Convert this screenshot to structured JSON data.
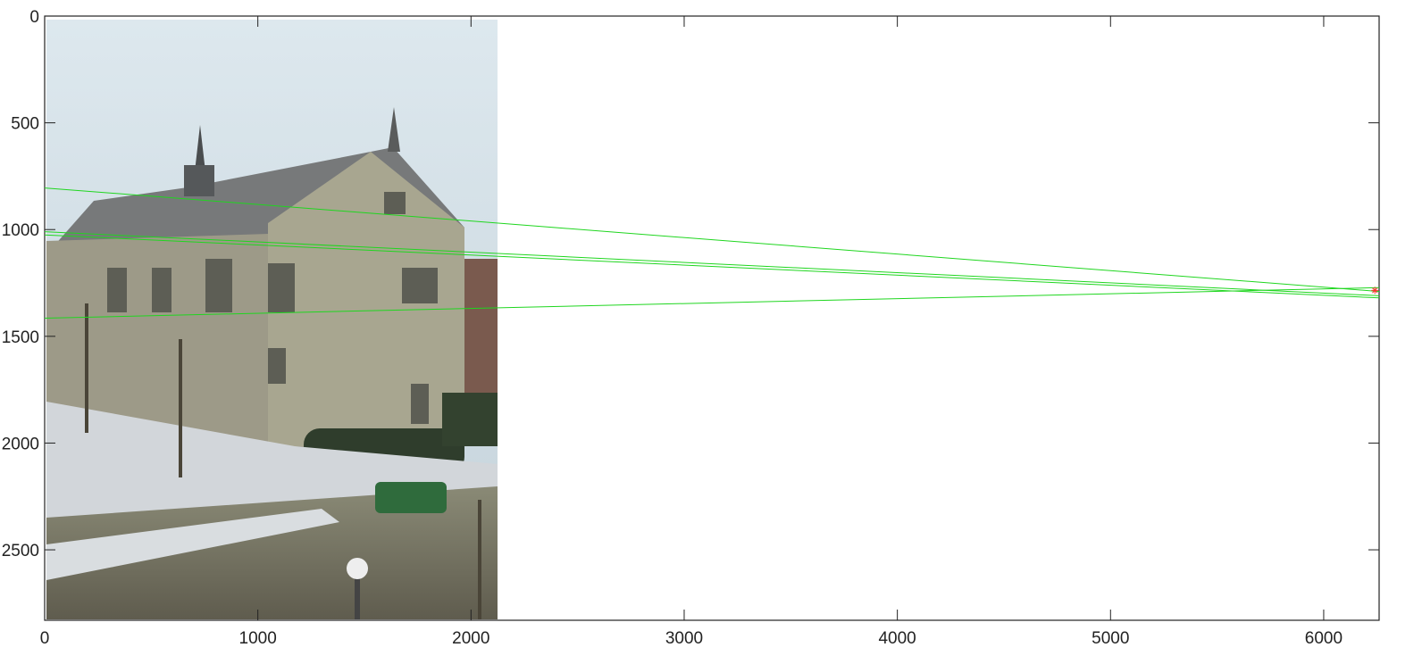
{
  "chart_data": {
    "type": "scatter",
    "title": "",
    "xlabel": "",
    "ylabel": "",
    "xlim": [
      0,
      6260
    ],
    "ylim": [
      0,
      2830
    ],
    "y_reversed": true,
    "grid": false,
    "x_ticks": [
      0,
      1000,
      2000,
      3000,
      4000,
      5000,
      6000
    ],
    "y_ticks": [
      0,
      500,
      1000,
      1500,
      2000,
      2500
    ],
    "image": {
      "description": "photo of a stone building with bare trees and snowy ground",
      "x_extent": [
        0,
        2120
      ],
      "y_extent": [
        0,
        2830
      ]
    },
    "lines": [
      {
        "color": "#1fd61f",
        "x": [
          0,
          6260
        ],
        "y": [
          805,
          1290
        ]
      },
      {
        "color": "#1fd61f",
        "x": [
          0,
          6260
        ],
        "y": [
          1010,
          1310
        ]
      },
      {
        "color": "#1fd61f",
        "x": [
          0,
          6260
        ],
        "y": [
          1025,
          1320
        ]
      },
      {
        "color": "#1fd61f",
        "x": [
          0,
          6260
        ],
        "y": [
          1415,
          1272
        ]
      }
    ],
    "points": [
      {
        "x": 6240,
        "y": 1285,
        "marker": "asterisk",
        "color": "#ff3030"
      }
    ]
  }
}
